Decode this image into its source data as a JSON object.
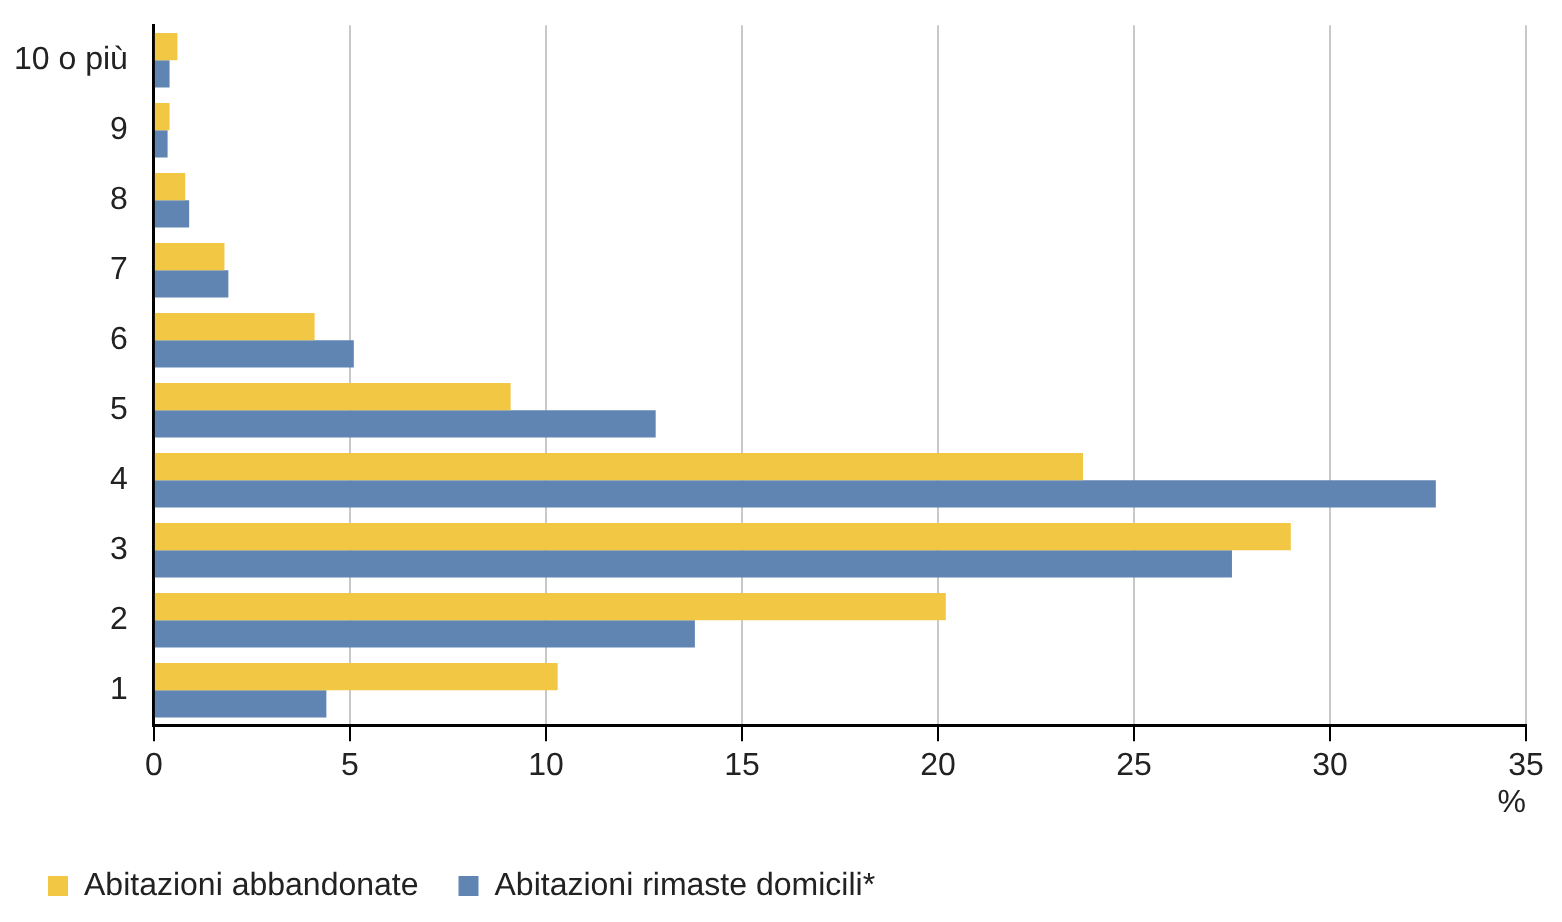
{
  "chart_data": {
    "type": "bar",
    "orientation": "horizontal",
    "categories": [
      "10 o più",
      "9",
      "8",
      "7",
      "6",
      "5",
      "4",
      "3",
      "2",
      "1"
    ],
    "series": [
      {
        "name": "Abitazioni abbandonate",
        "color": "#f2c744",
        "values": [
          0.6,
          0.4,
          0.8,
          1.8,
          4.1,
          9.1,
          23.7,
          29.0,
          20.2,
          10.3
        ]
      },
      {
        "name": "Abitazioni rimaste domicili*",
        "color": "#6185b3",
        "values": [
          0.4,
          0.35,
          0.9,
          1.9,
          5.1,
          12.8,
          32.7,
          27.5,
          13.8,
          4.4
        ]
      }
    ],
    "xlabel": "%",
    "xlim": [
      0,
      35
    ],
    "xticks": [
      0,
      5,
      10,
      15,
      20,
      25,
      30,
      35
    ],
    "grid": "x",
    "legend": "bottom left"
  }
}
